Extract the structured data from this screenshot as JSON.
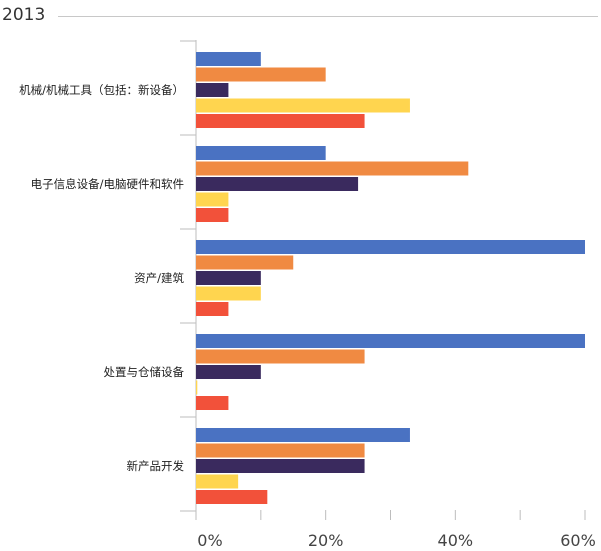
{
  "chart_data": {
    "type": "bar",
    "orientation": "horizontal",
    "title": "2013",
    "categories": [
      "机械/机械工具（包括：新设备）",
      "电子信息设备/电脑硬件和软件",
      "资产/建筑",
      "处置与仓储设备",
      "新产品开发"
    ],
    "series": [
      {
        "values": [
          10,
          20,
          60,
          60,
          33
        ],
        "color": "#4a72c2"
      },
      {
        "values": [
          20,
          42,
          15,
          26,
          26
        ],
        "color": "#f08a42"
      },
      {
        "values": [
          5,
          25,
          10,
          10,
          26
        ],
        "color": "#3a2a5e"
      },
      {
        "values": [
          33,
          5,
          10,
          0.2,
          6.5
        ],
        "color": "#ffd54f"
      },
      {
        "values": [
          26,
          5,
          5,
          5,
          11
        ],
        "color": "#f2513a"
      }
    ],
    "xlim": [
      0,
      60
    ],
    "xticks": [
      "0%",
      "20%",
      "40%",
      "60%"
    ],
    "grid": false,
    "legend": "none"
  }
}
